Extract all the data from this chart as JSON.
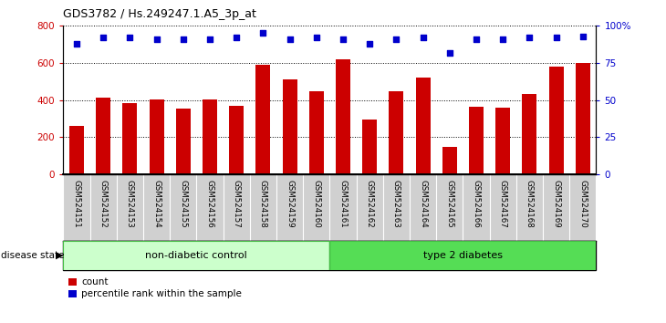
{
  "title": "GDS3782 / Hs.249247.1.A5_3p_at",
  "samples": [
    "GSM524151",
    "GSM524152",
    "GSM524153",
    "GSM524154",
    "GSM524155",
    "GSM524156",
    "GSM524157",
    "GSM524158",
    "GSM524159",
    "GSM524160",
    "GSM524161",
    "GSM524162",
    "GSM524163",
    "GSM524164",
    "GSM524165",
    "GSM524166",
    "GSM524167",
    "GSM524168",
    "GSM524169",
    "GSM524170"
  ],
  "counts": [
    260,
    415,
    385,
    405,
    355,
    405,
    370,
    590,
    510,
    450,
    620,
    295,
    450,
    520,
    150,
    365,
    360,
    435,
    580,
    600
  ],
  "percentile_ranks": [
    88,
    92,
    92,
    91,
    91,
    91,
    92,
    95,
    91,
    92,
    91,
    88,
    91,
    92,
    82,
    91,
    91,
    92,
    92,
    93
  ],
  "group1_label": "non-diabetic control",
  "group1_count": 10,
  "group2_label": "type 2 diabetes",
  "group2_count": 10,
  "group_label": "disease state",
  "bar_color": "#cc0000",
  "dot_color": "#0000cc",
  "group1_color": "#ccffcc",
  "group2_color": "#55dd55",
  "ylim_left": [
    0,
    800
  ],
  "ylim_right": [
    0,
    100
  ],
  "yticks_left": [
    0,
    200,
    400,
    600,
    800
  ],
  "yticks_right": [
    0,
    25,
    50,
    75,
    100
  ],
  "ytick_labels_right": [
    "0",
    "25",
    "50",
    "75",
    "100%"
  ],
  "background_color": "#ffffff",
  "tick_area_color": "#d0d0d0"
}
